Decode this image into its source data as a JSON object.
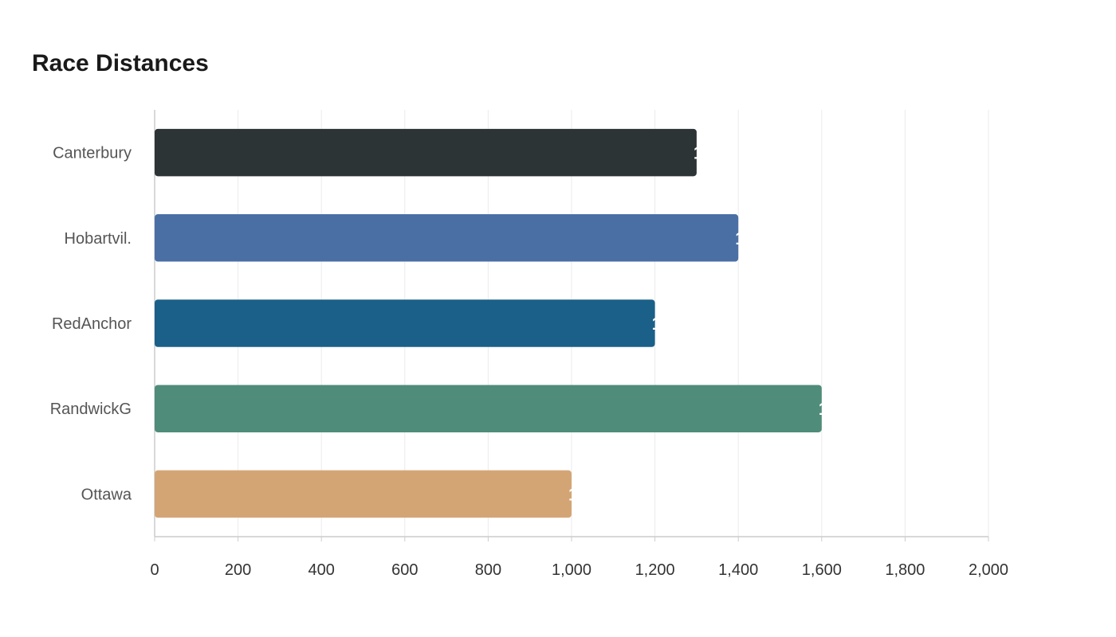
{
  "chart_data": {
    "type": "bar",
    "orientation": "horizontal",
    "title": "Race Distances",
    "xlabel": "",
    "ylabel": "",
    "categories": [
      "Canterbury",
      "Hobartvil.",
      "RedAnchor",
      "RandwickG",
      "Ottawa"
    ],
    "values": [
      1300,
      1400,
      1200,
      1600,
      1000
    ],
    "colors": [
      "#2d3436",
      "#4a6fa5",
      "#1a6088",
      "#4f8c7a",
      "#d4a574"
    ],
    "xlim": [
      0,
      2000
    ],
    "x_ticks": [
      0,
      200,
      400,
      600,
      800,
      1000,
      1200,
      1400,
      1600,
      1800,
      2000
    ],
    "x_tick_labels": [
      "0",
      "200",
      "400",
      "600",
      "800",
      "1,000",
      "1,200",
      "1,400",
      "1,600",
      "1,800",
      "2,000"
    ],
    "grid": true,
    "legend": "none"
  }
}
